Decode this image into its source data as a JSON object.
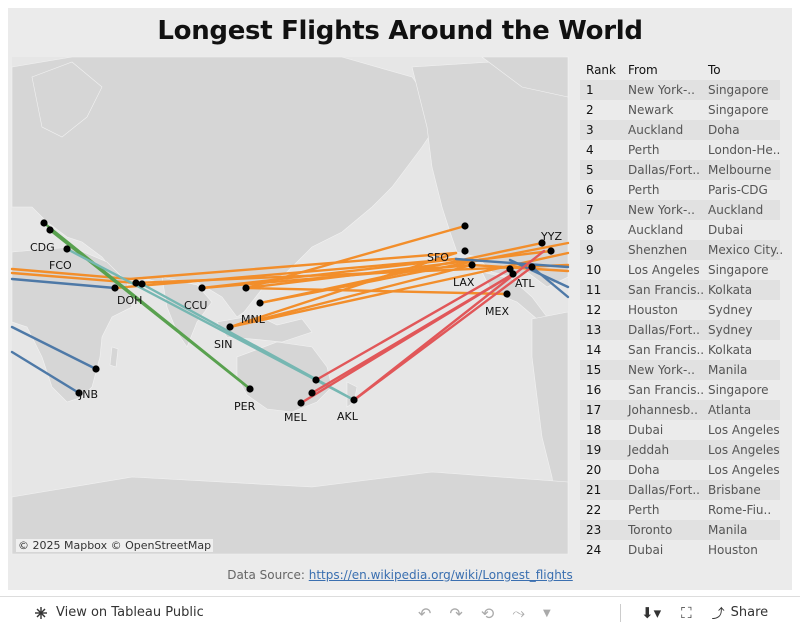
{
  "title": "Longest Flights Around the World",
  "map": {
    "attribution": "© 2025 Mapbox  © OpenStreetMap",
    "airport_labels": [
      "CDG",
      "FCO",
      "DOH",
      "CCU",
      "SIN",
      "MNL",
      "PER",
      "MEL",
      "AKL",
      "JNB",
      "SFO",
      "LAX",
      "MEX",
      "ATL",
      "YYZ"
    ],
    "colors": {
      "orange": "#f28e2b",
      "blue": "#4e79a7",
      "teal": "#76b7b2",
      "green": "#59a14f",
      "red": "#e15759",
      "land": "#d3d3d3",
      "water": "#e6e6e6"
    }
  },
  "table": {
    "headers": {
      "rank": "Rank",
      "from": "From",
      "to": "To"
    },
    "rows": [
      {
        "rank": "1",
        "from": "New York-..",
        "to": "Singapore"
      },
      {
        "rank": "2",
        "from": "Newark",
        "to": "Singapore"
      },
      {
        "rank": "3",
        "from": "Auckland",
        "to": "Doha"
      },
      {
        "rank": "4",
        "from": "Perth",
        "to": "London-He.."
      },
      {
        "rank": "5",
        "from": "Dallas/Fort..",
        "to": "Melbourne"
      },
      {
        "rank": "6",
        "from": "Perth",
        "to": "Paris-CDG"
      },
      {
        "rank": "7",
        "from": "New York-..",
        "to": "Auckland"
      },
      {
        "rank": "8",
        "from": "Auckland",
        "to": "Dubai"
      },
      {
        "rank": "9",
        "from": "Shenzhen",
        "to": "Mexico City.."
      },
      {
        "rank": "10",
        "from": "Los Angeles",
        "to": "Singapore"
      },
      {
        "rank": "11",
        "from": "San Francis..",
        "to": "Kolkata"
      },
      {
        "rank": "12",
        "from": "Houston",
        "to": "Sydney"
      },
      {
        "rank": "13",
        "from": "Dallas/Fort..",
        "to": "Sydney"
      },
      {
        "rank": "14",
        "from": "San Francis..",
        "to": "Kolkata"
      },
      {
        "rank": "15",
        "from": "New York-..",
        "to": "Manila"
      },
      {
        "rank": "16",
        "from": "San Francis..",
        "to": "Singapore"
      },
      {
        "rank": "17",
        "from": "Johannesb..",
        "to": "Atlanta"
      },
      {
        "rank": "18",
        "from": "Dubai",
        "to": "Los Angeles"
      },
      {
        "rank": "19",
        "from": "Jeddah",
        "to": "Los Angeles"
      },
      {
        "rank": "20",
        "from": "Doha",
        "to": "Los Angeles"
      },
      {
        "rank": "21",
        "from": "Dallas/Fort..",
        "to": "Brisbane"
      },
      {
        "rank": "22",
        "from": "Perth",
        "to": "Rome-Fiu.."
      },
      {
        "rank": "23",
        "from": "Toronto",
        "to": "Manila"
      },
      {
        "rank": "24",
        "from": "Dubai",
        "to": "Houston"
      }
    ]
  },
  "source": {
    "label": "Data Source: ",
    "link": "https://en.wikipedia.org/wiki/Longest_flights"
  },
  "toolbar": {
    "view_label": "View on Tableau Public",
    "share_label": "Share"
  }
}
